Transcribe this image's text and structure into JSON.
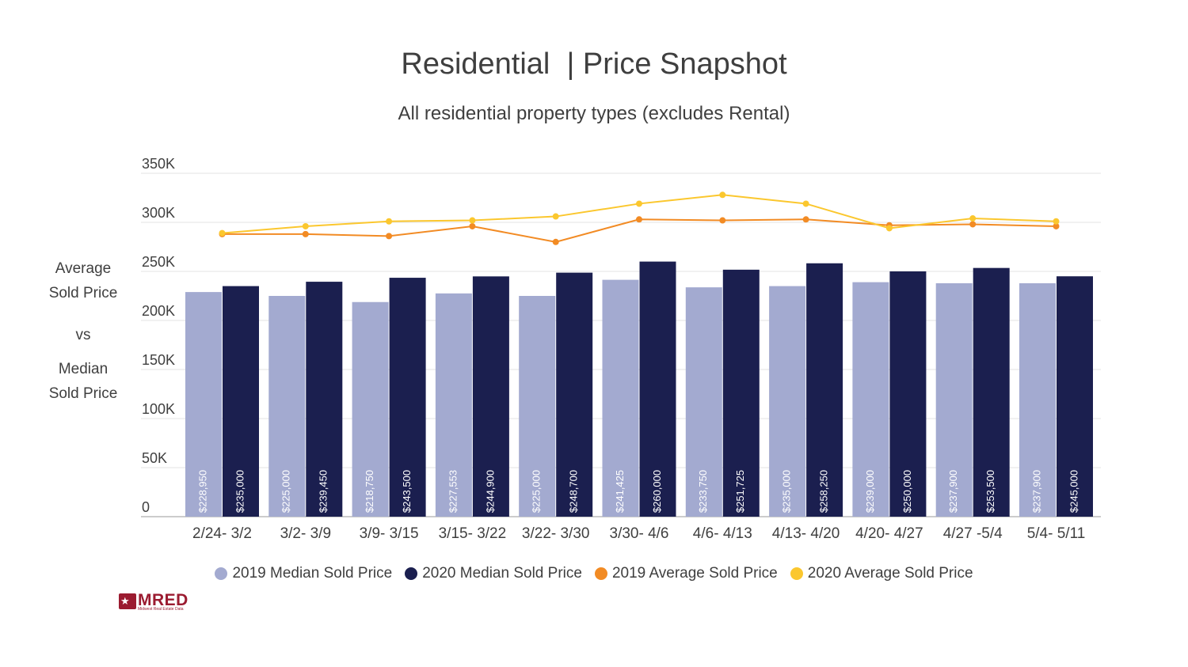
{
  "title": "Residential  | Price Snapshot",
  "subtitle": "All residential property types (excludes Rental)",
  "side_label": {
    "line1": "Average",
    "line2": "Sold Price",
    "line3": "vs",
    "line4": "Median",
    "line5": "Sold Price"
  },
  "logo": {
    "text": "MRED",
    "subtext": "Midwest Real Estate Data"
  },
  "chart_data": {
    "type": "bar",
    "title": "Residential  | Price Snapshot",
    "subtitle": "All residential property types (excludes Rental)",
    "ylabel": "Average Sold Price vs Median Sold Price",
    "ylim": [
      0,
      350000
    ],
    "yticks": [
      {
        "value": 0,
        "label": "0"
      },
      {
        "value": 50000,
        "label": "50K"
      },
      {
        "value": 100000,
        "label": "100K"
      },
      {
        "value": 150000,
        "label": "150K"
      },
      {
        "value": 200000,
        "label": "200K"
      },
      {
        "value": 250000,
        "label": "250K"
      },
      {
        "value": 300000,
        "label": "300K"
      },
      {
        "value": 350000,
        "label": "350K"
      }
    ],
    "grid": true,
    "legend_position": "bottom",
    "categories": [
      "2/24- 3/2",
      "3/2- 3/9",
      "3/9- 3/15",
      "3/15- 3/22",
      "3/22- 3/30",
      "3/30- 4/6",
      "4/6- 4/13",
      "4/13- 4/20",
      "4/20- 4/27",
      "4/27 -5/4",
      "5/4- 5/11"
    ],
    "series": [
      {
        "name": "2019 Median Sold Price",
        "kind": "bar",
        "color": "#a3aad0",
        "values": [
          228950,
          225000,
          218750,
          227553,
          225000,
          241425,
          233750,
          235000,
          239000,
          237900,
          237900
        ],
        "labels": [
          "$228,950",
          "$225,000",
          "$218,750",
          "$227,553",
          "$225,000",
          "$241,425",
          "$233,750",
          "$235,000",
          "$239,000",
          "$237,900",
          "$237,900"
        ]
      },
      {
        "name": "2020 Median Sold Price",
        "kind": "bar",
        "color": "#1b1f4f",
        "values": [
          235000,
          239450,
          243500,
          244900,
          248700,
          260000,
          251725,
          258250,
          250000,
          253500,
          245000
        ],
        "labels": [
          "$235,000",
          "$239,450",
          "$243,500",
          "$244,900",
          "$248,700",
          "$260,000",
          "$251,725",
          "$258,250",
          "$250,000",
          "$253,500",
          "$245,000"
        ]
      },
      {
        "name": "2019 Average Sold Price",
        "kind": "line",
        "color": "#f28b24",
        "values": [
          288000,
          288000,
          286000,
          296000,
          280000,
          303000,
          302000,
          303000,
          297000,
          298000,
          296000
        ]
      },
      {
        "name": "2020 Average Sold Price",
        "kind": "line",
        "color": "#fbc72e",
        "values": [
          289000,
          296000,
          301000,
          302000,
          306000,
          319000,
          328000,
          319000,
          294000,
          304000,
          301000
        ]
      }
    ]
  }
}
